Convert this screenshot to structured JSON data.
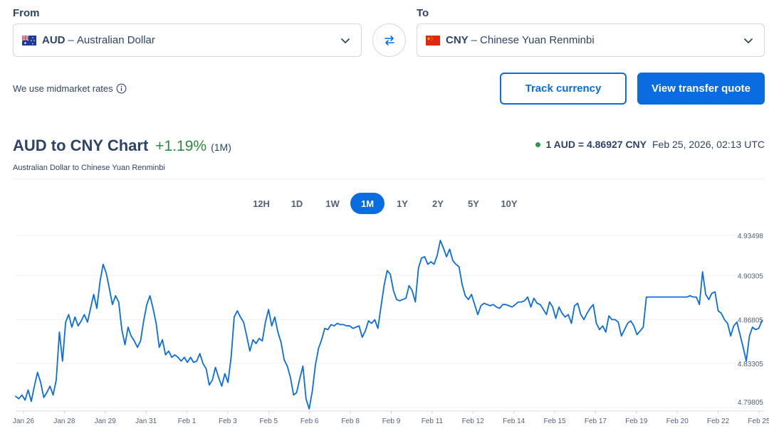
{
  "converter": {
    "from_label": "From",
    "to_label": "To",
    "from": {
      "code": "AUD",
      "sep": "–",
      "name": "Australian Dollar"
    },
    "to": {
      "code": "CNY",
      "sep": "–",
      "name": "Chinese Yuan Renminbi"
    },
    "midmarket_text": "We use midmarket rates",
    "track_label": "Track currency",
    "quote_label": "View transfer quote"
  },
  "colors": {
    "accent": "#0a6ce1",
    "positive": "#2b8a3e",
    "line": "#0a6ce1",
    "live_dot": "#2b9a47"
  },
  "header": {
    "title": "AUD to CNY Chart",
    "change": "+1.19%",
    "period": "(1M)",
    "subtitle": "Australian Dollar to Chinese Yuan Renminbi",
    "rate": "1 AUD = 4.86927 CNY",
    "timestamp": "Feb 25, 2026, 02:13 UTC"
  },
  "periods": [
    "12H",
    "1D",
    "1W",
    "1M",
    "1Y",
    "2Y",
    "5Y",
    "10Y"
  ],
  "active_period": "1M",
  "chart_data": {
    "type": "line",
    "x_tick_labels": [
      "Jan 26",
      "Jan 28",
      "Jan 29",
      "Jan 31",
      "Feb 1",
      "Feb 3",
      "Feb 5",
      "Feb 6",
      "Feb 8",
      "Feb 9",
      "Feb 11",
      "Feb 12",
      "Feb 14",
      "Feb 15",
      "Feb 17",
      "Feb 19",
      "Feb 20",
      "Feb 22",
      "Feb 25"
    ],
    "y_tick_labels": [
      "4.93498",
      "4.90305",
      "4.86805",
      "4.83305",
      "4.79805"
    ],
    "y_ticks": [
      4.93498,
      4.90305,
      4.86805,
      4.83305,
      4.79805
    ],
    "ylim": [
      4.79805,
      4.93498
    ],
    "grid": true,
    "series": [
      {
        "values": [
          4.807,
          4.805,
          4.808,
          4.804,
          4.812,
          4.803,
          4.815,
          4.826,
          4.818,
          4.806,
          4.81,
          4.815,
          4.808,
          4.82,
          4.858,
          4.835,
          4.866,
          4.872,
          4.862,
          4.87,
          4.863,
          4.867,
          4.872,
          4.866,
          4.877,
          4.888,
          4.877,
          4.898,
          4.912,
          4.905,
          4.893,
          4.88,
          4.887,
          4.882,
          4.86,
          4.848,
          4.862,
          4.855,
          4.851,
          4.846,
          4.851,
          4.867,
          4.88,
          4.887,
          4.877,
          4.865,
          4.846,
          4.852,
          4.84,
          4.843,
          4.838,
          4.84,
          4.838,
          4.835,
          4.838,
          4.834,
          4.838,
          4.834,
          4.835,
          4.841,
          4.833,
          4.829,
          4.816,
          4.82,
          4.83,
          4.822,
          4.815,
          4.825,
          4.818,
          4.838,
          4.87,
          4.875,
          4.87,
          4.866,
          4.855,
          4.843,
          4.852,
          4.849,
          4.853,
          4.851,
          4.866,
          4.876,
          4.863,
          4.87,
          4.858,
          4.85,
          4.836,
          4.831,
          4.822,
          4.808,
          4.81,
          4.821,
          4.831,
          4.805,
          4.797,
          4.811,
          4.832,
          4.845,
          4.852,
          4.861,
          4.86,
          4.864,
          4.863,
          4.865,
          4.864,
          4.864,
          4.863,
          4.863,
          4.861,
          4.862,
          4.863,
          4.854,
          4.859,
          4.867,
          4.865,
          4.868,
          4.861,
          4.878,
          4.895,
          4.907,
          4.904,
          4.891,
          4.884,
          4.883,
          4.884,
          4.885,
          4.895,
          4.891,
          4.882,
          4.909,
          4.917,
          4.918,
          4.912,
          4.914,
          4.912,
          4.919,
          4.931,
          4.925,
          4.918,
          4.924,
          4.915,
          4.912,
          4.91,
          4.896,
          4.887,
          4.884,
          4.888,
          4.88,
          4.872,
          4.879,
          4.881,
          4.88,
          4.879,
          4.88,
          4.878,
          4.877,
          4.88,
          4.88,
          4.879,
          4.878,
          4.88,
          4.882,
          4.882,
          4.883,
          4.886,
          4.878,
          4.885,
          4.881,
          4.88,
          4.876,
          4.872,
          4.882,
          4.878,
          4.869,
          4.878,
          4.873,
          4.87,
          4.872,
          4.865,
          4.879,
          4.881,
          4.872,
          4.868,
          4.873,
          4.877,
          4.88,
          4.865,
          4.86,
          4.863,
          4.858,
          4.871,
          4.868,
          4.868,
          4.866,
          4.855,
          4.86,
          4.865,
          4.867,
          4.863,
          4.856,
          4.859,
          4.862,
          4.886,
          4.886,
          4.886,
          4.886,
          4.886,
          4.886,
          4.886,
          4.886,
          4.886,
          4.886,
          4.886,
          4.886,
          4.886,
          4.886,
          4.887,
          4.886,
          4.886,
          4.88,
          4.906,
          4.888,
          4.884,
          4.889,
          4.89,
          4.875,
          4.873,
          4.868,
          4.865,
          4.855,
          4.863,
          4.866,
          4.856,
          4.846,
          4.835,
          4.855,
          4.862,
          4.86,
          4.861,
          4.867
        ]
      }
    ]
  }
}
